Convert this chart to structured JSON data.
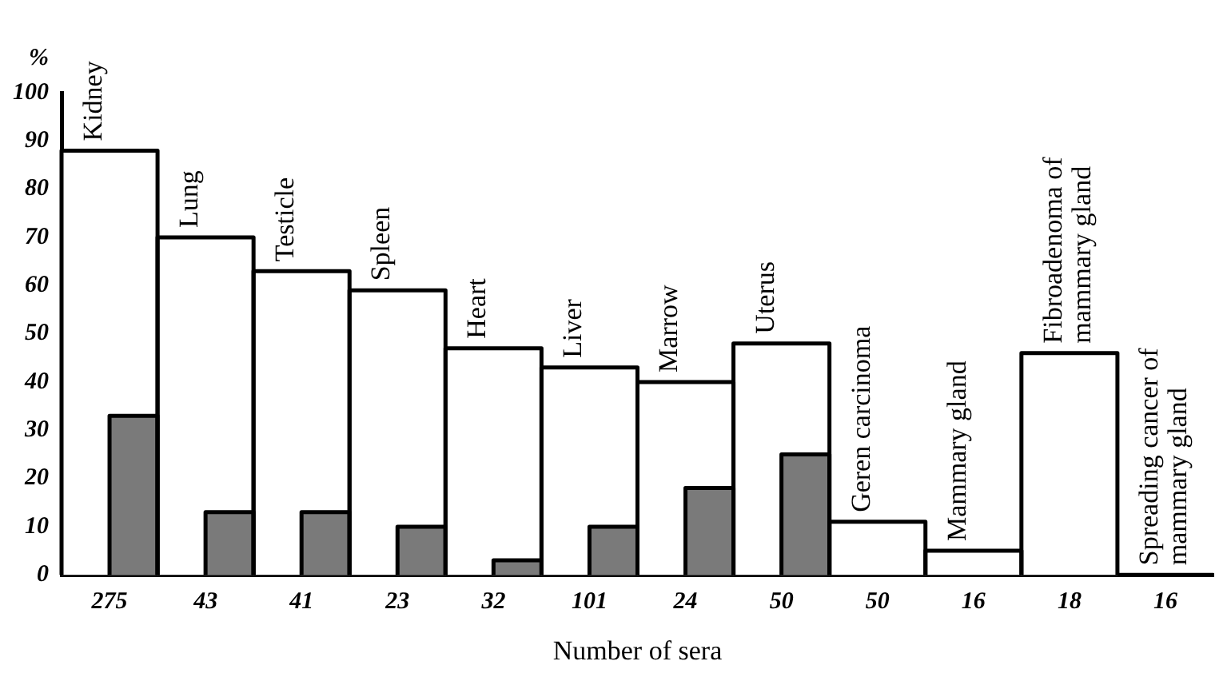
{
  "chart_data": {
    "type": "bar",
    "xlabel": "Number of sera",
    "ylabel": "%",
    "categories": [
      "275",
      "43",
      "41",
      "23",
      "32",
      "101",
      "24",
      "50",
      "50",
      "16",
      "18",
      "16"
    ],
    "series": [
      {
        "color": "#ffffff",
        "values": [
          88,
          70,
          63,
          59,
          47,
          43,
          40,
          48,
          11,
          5,
          46,
          0
        ],
        "value_labels": [
          "Kidney",
          "Lung",
          "Testicle",
          "Spleen",
          "Heart",
          "Liver",
          "Marrow",
          "Uterus",
          "Geren carcinoma",
          "Mammary gland",
          "Fibroadenoma of\nmammary gland",
          "Spreading cancer of\nmammary gland"
        ]
      },
      {
        "color": "#7a7a7a",
        "values": [
          33,
          13,
          13,
          10,
          3,
          10,
          18,
          25,
          null,
          null,
          null,
          null
        ]
      }
    ],
    "ylim": [
      0,
      100
    ],
    "yticks": [
      0,
      10,
      20,
      30,
      40,
      50,
      60,
      70,
      80,
      90,
      100
    ],
    "grid": false,
    "legend": false
  }
}
